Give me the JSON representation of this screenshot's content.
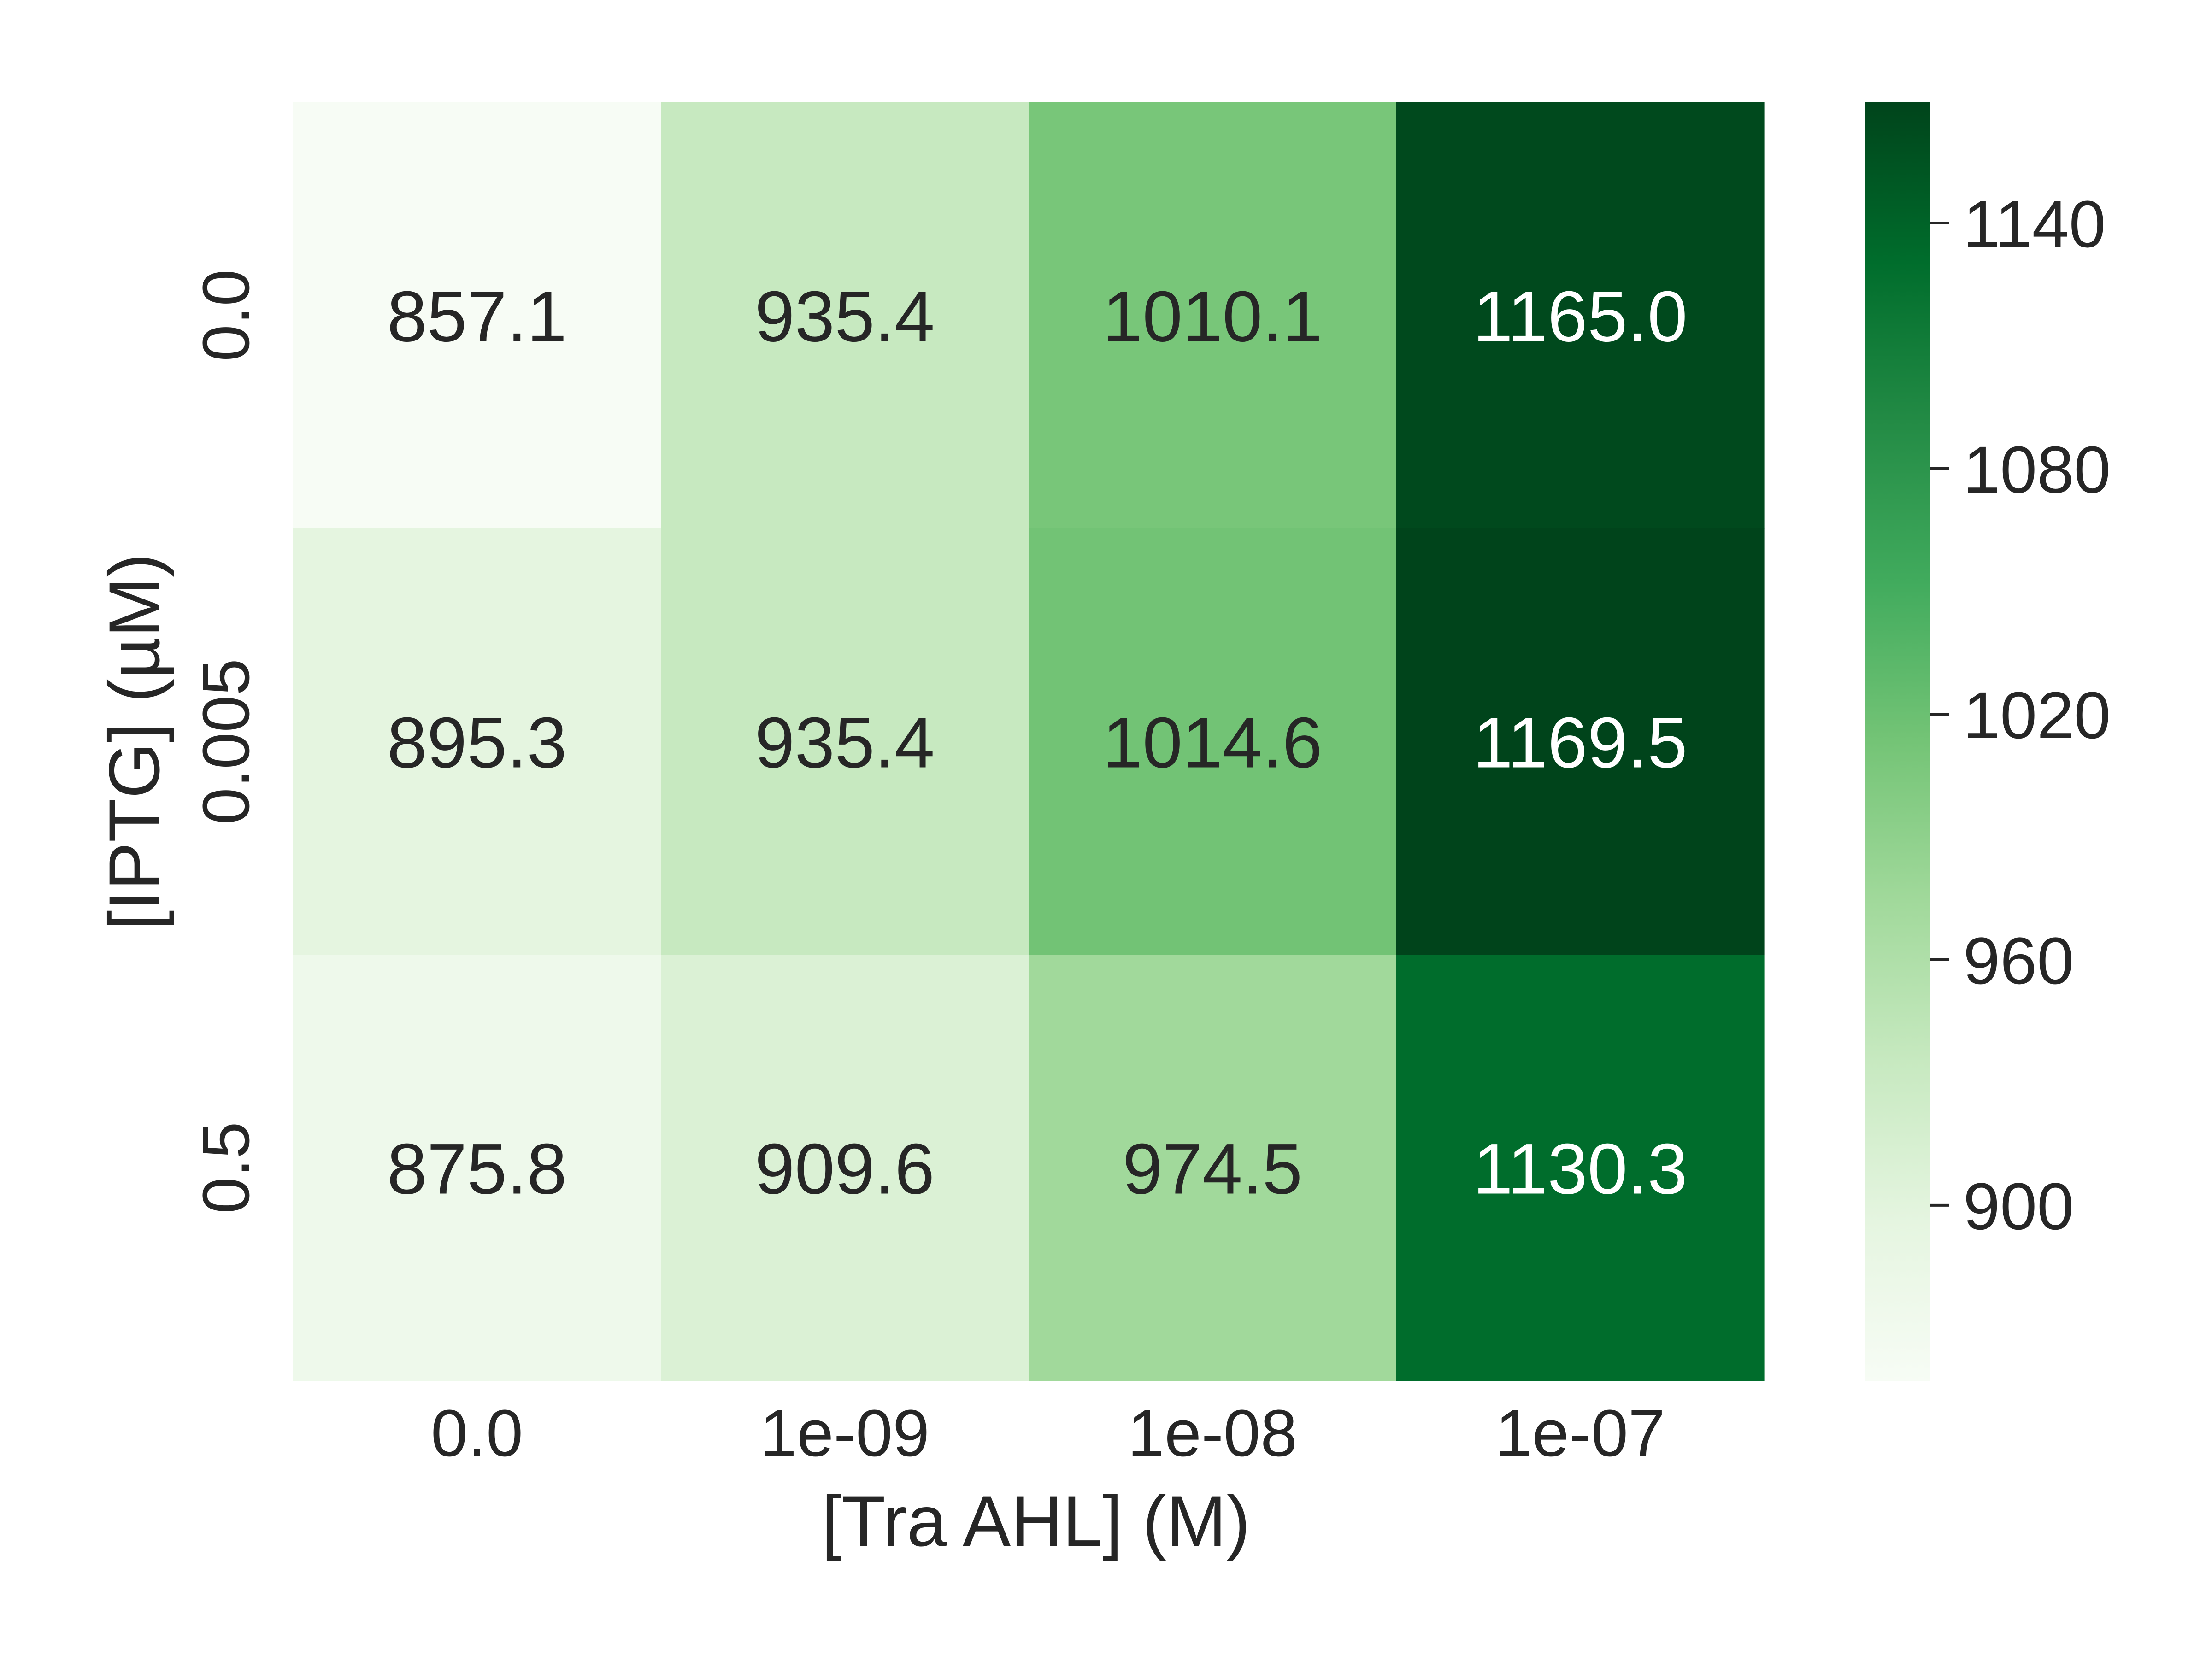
{
  "chart_data": {
    "type": "heatmap",
    "title": "",
    "xlabel": "[Tra AHL] (M)",
    "ylabel": "[IPTG] (µM)",
    "x_categories": [
      "0.0",
      "1e-09",
      "1e-08",
      "1e-07"
    ],
    "y_categories": [
      "0.0",
      "0.005",
      "0.5"
    ],
    "values": [
      [
        857.1,
        935.4,
        1010.1,
        1165.0
      ],
      [
        895.3,
        935.4,
        1014.6,
        1169.5
      ],
      [
        875.8,
        909.6,
        974.5,
        1130.3
      ]
    ],
    "value_format": "one decimal",
    "colormap": "Greens",
    "color_range": [
      857.1,
      1169.5
    ],
    "colorbar": {
      "ticks": [
        900,
        960,
        1020,
        1080,
        1140
      ],
      "tick_labels": [
        "900",
        "960",
        "1020",
        "1080",
        "1140"
      ]
    },
    "colors": {
      "low": "#f7fcf5",
      "high": "#00441b",
      "text_dark": "#262626",
      "text_light": "#ffffff"
    },
    "grid": false,
    "legend": "colorbar right"
  }
}
